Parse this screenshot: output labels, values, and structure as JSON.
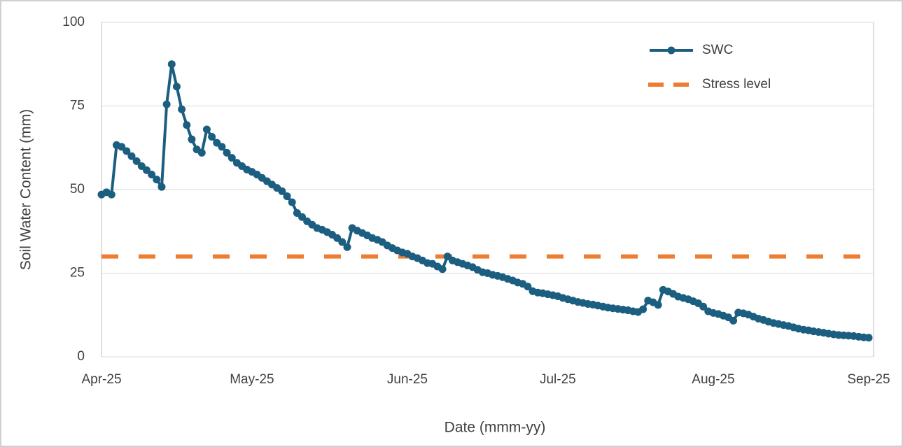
{
  "chart_data": {
    "type": "line",
    "x_label": "Date (mmm-yy)",
    "y_label": "Soil Water Content (mm)",
    "categories": [
      "Apr-25",
      null,
      null,
      null,
      null,
      null,
      null,
      null,
      null,
      null,
      null,
      null,
      null,
      null,
      null,
      null,
      null,
      null,
      null,
      null,
      null,
      null,
      null,
      null,
      null,
      null,
      null,
      null,
      null,
      null,
      "May-25",
      null,
      null,
      null,
      null,
      null,
      null,
      null,
      null,
      null,
      null,
      null,
      null,
      null,
      null,
      null,
      null,
      null,
      null,
      null,
      null,
      null,
      null,
      null,
      null,
      null,
      null,
      null,
      null,
      null,
      null,
      "Jun-25",
      null,
      null,
      null,
      null,
      null,
      null,
      null,
      null,
      null,
      null,
      null,
      null,
      null,
      null,
      null,
      null,
      null,
      null,
      null,
      null,
      null,
      null,
      null,
      null,
      null,
      null,
      null,
      null,
      null,
      "Jul-25",
      null,
      null,
      null,
      null,
      null,
      null,
      null,
      null,
      null,
      null,
      null,
      null,
      null,
      null,
      null,
      null,
      null,
      null,
      null,
      null,
      null,
      null,
      null,
      null,
      null,
      null,
      null,
      null,
      null,
      null,
      "Aug-25",
      null,
      null,
      null,
      null,
      null,
      null,
      null,
      null,
      null,
      null,
      null,
      null,
      null,
      null,
      null,
      null,
      null,
      null,
      null,
      null,
      null,
      null,
      null,
      null,
      null,
      null,
      null,
      null,
      null,
      null,
      "Sep-25"
    ],
    "series": [
      {
        "name": "SWC",
        "color": "#1b5e80",
        "values": [
          48.5,
          49.2,
          48.5,
          63.3,
          62.8,
          61.5,
          60,
          58.5,
          57,
          55.8,
          54.5,
          53,
          50.8,
          75.5,
          87.5,
          80.8,
          74,
          69.3,
          65,
          62,
          61,
          68,
          65.8,
          64,
          62.8,
          61,
          59.5,
          58,
          57,
          56,
          55.3,
          54.5,
          53.5,
          52.5,
          51.5,
          50.5,
          49.5,
          48,
          46.2,
          43,
          41.8,
          40.5,
          39.5,
          38.5,
          38,
          37.3,
          36.5,
          35.5,
          34.3,
          32.8,
          38.5,
          37.7,
          37,
          36.3,
          35.5,
          35,
          34.3,
          33.3,
          32.5,
          31.8,
          31.2,
          30.8,
          30,
          29.5,
          28.8,
          28,
          27.8,
          27,
          26.2,
          30,
          28.8,
          28.3,
          27.8,
          27.3,
          26.8,
          26,
          25.3,
          25,
          24.5,
          24.2,
          23.8,
          23.3,
          22.8,
          22.2,
          21.8,
          21,
          19.6,
          19.2,
          19,
          18.7,
          18.4,
          18.1,
          17.6,
          17.2,
          16.8,
          16.4,
          16.1,
          15.8,
          15.6,
          15.3,
          15,
          14.7,
          14.5,
          14.3,
          14.1,
          13.9,
          13.6,
          13.4,
          14.2,
          16.8,
          16.3,
          15.5,
          20,
          19.5,
          18.8,
          18,
          17.6,
          17.2,
          16.6,
          16,
          15,
          13.6,
          13.1,
          12.8,
          12.3,
          11.8,
          10.8,
          13.2,
          13,
          12.6,
          12,
          11.4,
          11,
          10.5,
          10.1,
          9.8,
          9.5,
          9.2,
          8.8,
          8.4,
          8.1,
          7.9,
          7.6,
          7.4,
          7.2,
          6.9,
          6.7,
          6.5,
          6.4,
          6.3,
          6.2,
          6,
          5.8,
          5.7
        ]
      }
    ],
    "reference_lines": [
      {
        "name": "Stress level",
        "value": 30,
        "color": "#ed7d31"
      }
    ],
    "ylim": [
      0,
      100
    ],
    "yticks": [
      0,
      25,
      50,
      75,
      100
    ],
    "grid": true
  }
}
